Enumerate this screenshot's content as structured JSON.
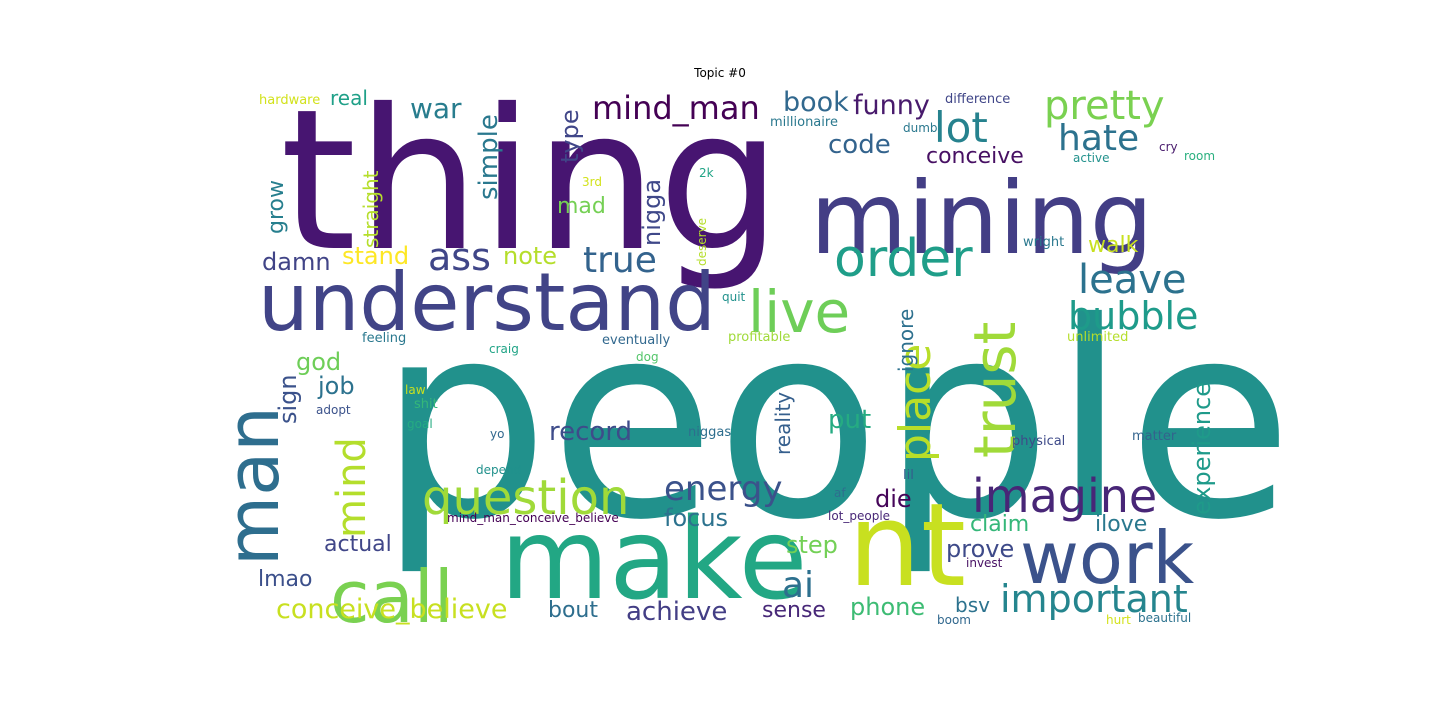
{
  "title": "Topic #0",
  "words": [
    "people",
    "thing",
    "mining",
    "make",
    "understand",
    "nt",
    "call",
    "work",
    "man",
    "live",
    "trust",
    "question",
    "imagine",
    "order",
    "place",
    "important",
    "lot",
    "mind_man",
    "pretty",
    "hate",
    "leave",
    "bubble",
    "energy",
    "ai",
    "true",
    "ass",
    "mind",
    "conceive_believe",
    "book",
    "funny",
    "code",
    "conceive",
    "war",
    "simple",
    "type",
    "nigga",
    "mad",
    "grow",
    "straight",
    "real",
    "damn",
    "stand",
    "note",
    "walk",
    "god",
    "job",
    "sign",
    "record",
    "put",
    "reality",
    "ignore",
    "experience",
    "die",
    "focus",
    "claim",
    "ilove",
    "step",
    "prove",
    "actual",
    "lmao",
    "bout",
    "achieve",
    "sense",
    "phone",
    "bsv",
    "hardware",
    "difference",
    "millionaire",
    "dumb",
    "active",
    "cry",
    "room",
    "3rd",
    "2k",
    "deserve",
    "wright",
    "quit",
    "profitable",
    "unlimited",
    "feeling",
    "craig",
    "eventually",
    "dog",
    "law",
    "adopt",
    "shit",
    "goal",
    "yo",
    "niggas",
    "physical",
    "matter",
    "depend",
    "lil",
    "af",
    "mind_man_conceive_believe",
    "lot_people",
    "invest",
    "boom",
    "hurt",
    "beautiful"
  ]
}
